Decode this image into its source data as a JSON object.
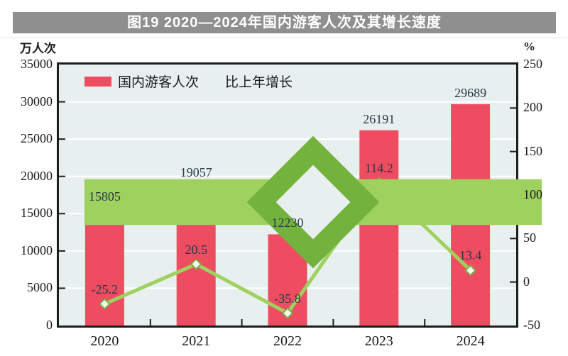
{
  "figure": {
    "title": "图19 2020—2024年国内游客人次及其增长速度",
    "left_axis_unit": "万人次",
    "right_axis_unit": "%"
  },
  "legend": {
    "bar_label": "国内游客人次",
    "line_label": "比上年增长"
  },
  "colors": {
    "title_bar_bg": "#8f8f8f",
    "title_text": "#ffffff",
    "plot_bg": "#e7f0ef",
    "bar": "#ee4c60",
    "line": "#9ed15e",
    "marker_fill": "#ffffff",
    "marker_stroke": "#74b23e",
    "axis": "#1d1d1d",
    "gridline": "#ffffff",
    "value_label_text": "#26374a"
  },
  "chart_data": {
    "type": "combo (bar + line, dual axis)",
    "title": "图19 2020—2024年国内游客人次及其增长速度",
    "categories": [
      "2020",
      "2021",
      "2022",
      "2023",
      "2024"
    ],
    "series": [
      {
        "name": "国内游客人次",
        "type": "bar",
        "axis": "left",
        "values": [
          15805,
          19057,
          12230,
          26191,
          29689
        ]
      },
      {
        "name": "比上年增长",
        "type": "line",
        "axis": "right",
        "values": [
          -25.2,
          20.5,
          -35.8,
          114.2,
          13.4
        ]
      }
    ],
    "left_axis": {
      "label": "万人次",
      "min": 0,
      "max": 35000,
      "step": 5000,
      "ticks": [
        35000,
        30000,
        25000,
        20000,
        15000,
        10000,
        5000,
        0
      ]
    },
    "right_axis": {
      "label": "%",
      "min": -50,
      "max": 250,
      "step": 50,
      "ticks": [
        250,
        200,
        150,
        100,
        50,
        0,
        -50
      ]
    },
    "grid": true,
    "legend_position": "top-left-inside"
  }
}
